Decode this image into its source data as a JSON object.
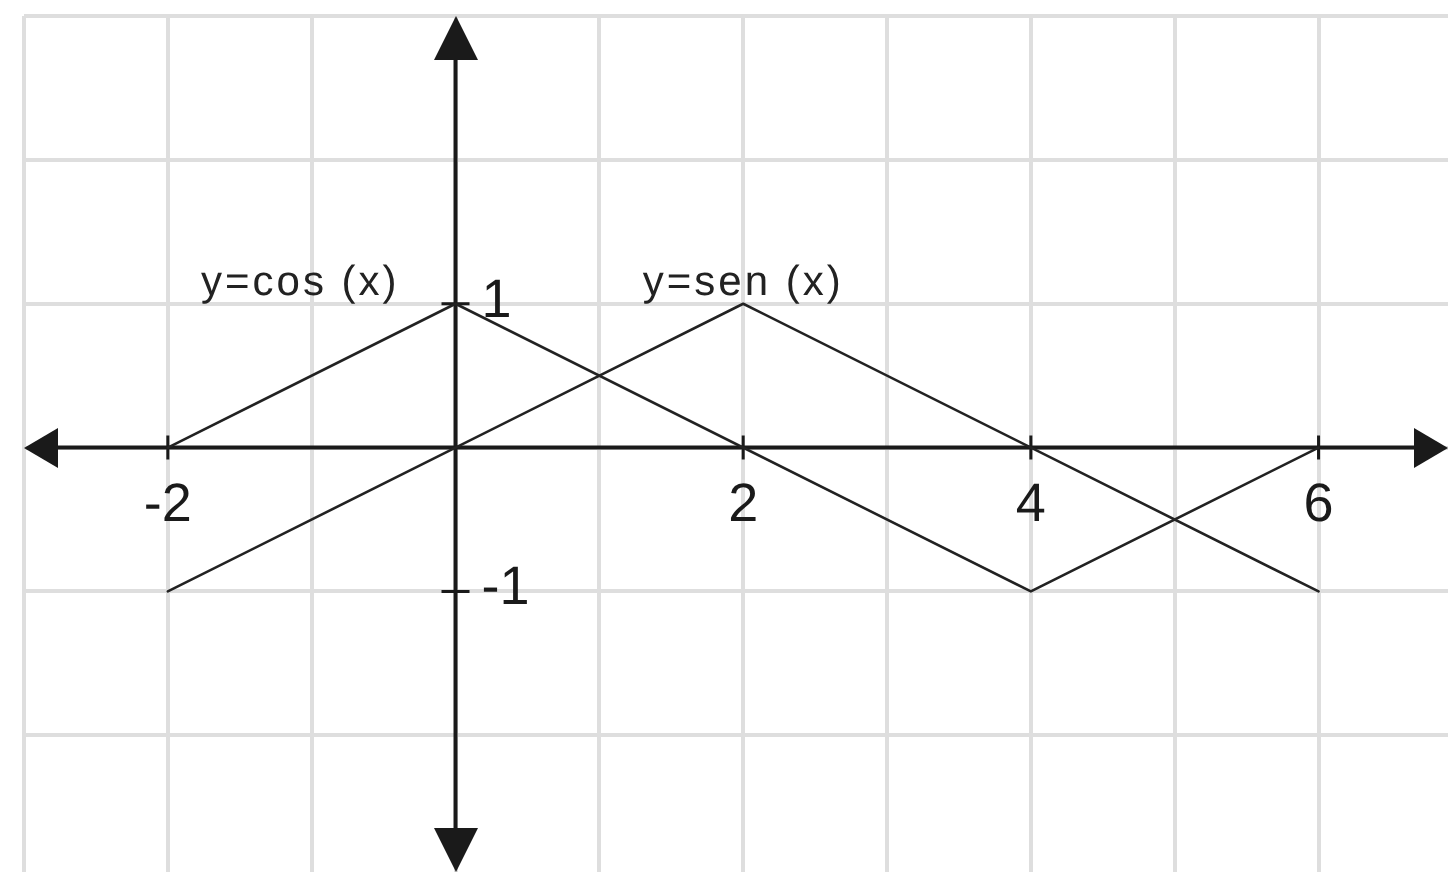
{
  "chart_data": {
    "type": "line",
    "series": [
      {
        "name": "y=cos (x)",
        "color": "#222222",
        "x": [
          -2,
          0,
          4,
          6
        ],
        "values": [
          0,
          1,
          -1,
          0
        ]
      },
      {
        "name": "y=sen (x)",
        "color": "#222222",
        "x": [
          -2,
          2,
          6
        ],
        "values": [
          -1,
          1,
          -1
        ]
      }
    ],
    "xlim": [
      -3,
      6.9
    ],
    "ylim": [
      -2.95,
      3
    ],
    "xticks": [
      {
        "value": -3,
        "label": null
      },
      -2,
      {
        "value": -1,
        "label": null
      },
      {
        "value": 0,
        "label": null
      },
      {
        "value": 1,
        "label": null
      },
      2,
      {
        "value": 3,
        "label": null
      },
      4,
      {
        "value": 5,
        "label": null
      },
      6
    ],
    "yticks": [
      {
        "value": -2,
        "label": null
      },
      -1,
      {
        "value": 0,
        "label": null
      },
      1,
      {
        "value": 2,
        "label": null
      },
      {
        "value": 3,
        "label": null
      }
    ],
    "grid": true,
    "marker": "none",
    "line_style": "solid"
  }
}
